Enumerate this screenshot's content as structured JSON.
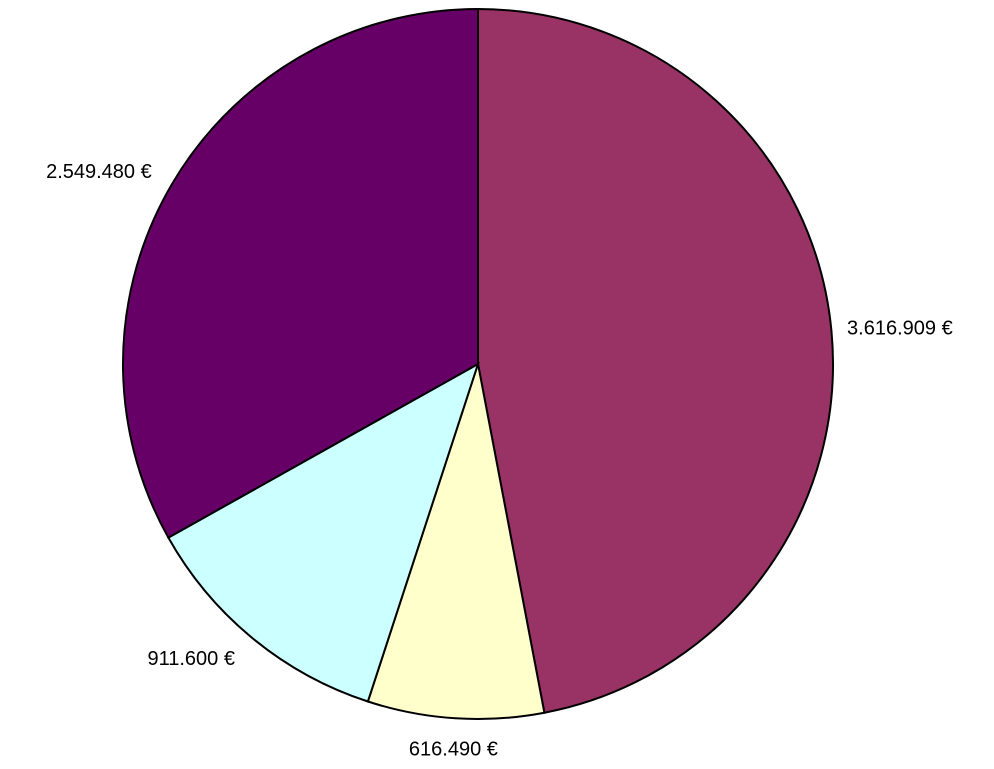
{
  "chart_data": {
    "type": "pie",
    "categories": [
      null,
      null,
      null,
      null
    ],
    "values": [
      3616909,
      616490,
      911600,
      2549480
    ],
    "value_labels": [
      "3.616.909 €",
      "616.490 €",
      "911.600 €",
      "2.549.480 €"
    ],
    "colors": [
      "#993366",
      "#ffffcc",
      "#ccffff",
      "#660066"
    ]
  }
}
